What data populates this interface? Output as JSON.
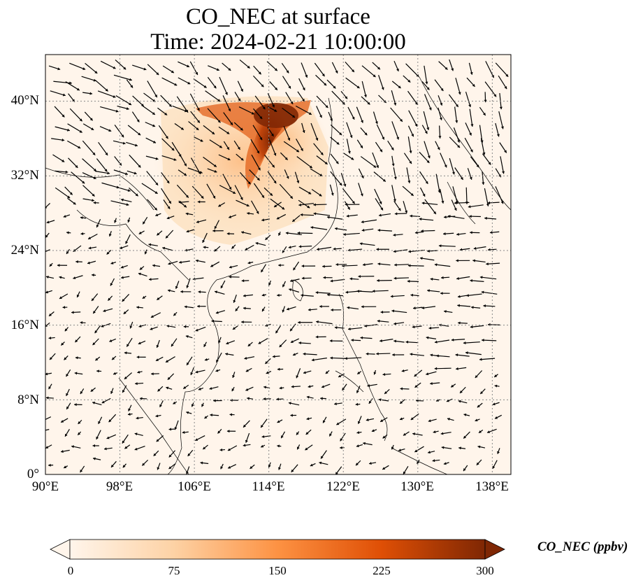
{
  "title": {
    "line1": "CO_NEC at surface",
    "line2": "Time: 2024-02-21 10:00:00"
  },
  "map": {
    "lon_range": [
      90,
      140
    ],
    "lat_range": [
      0,
      45
    ],
    "lat_ticks": [
      {
        "value": 0,
        "label": "0°"
      },
      {
        "value": 8,
        "label": "8°N"
      },
      {
        "value": 16,
        "label": "16°N"
      },
      {
        "value": 24,
        "label": "24°N"
      },
      {
        "value": 32,
        "label": "32°N"
      },
      {
        "value": 40,
        "label": "40°N"
      }
    ],
    "lon_ticks": [
      {
        "value": 90,
        "label": "90°E"
      },
      {
        "value": 98,
        "label": "98°E"
      },
      {
        "value": 106,
        "label": "106°E"
      },
      {
        "value": 114,
        "label": "114°E"
      },
      {
        "value": 122,
        "label": "122°E"
      },
      {
        "value": 130,
        "label": "130°E"
      },
      {
        "value": 138,
        "label": "138°E"
      }
    ],
    "gridlines": "dotted",
    "background_color": "#fff5eb",
    "coastline_color": "#000000",
    "wind_vectors": "black arrows"
  },
  "colorbar": {
    "label": "CO_NEC (ppbv)",
    "min": 0,
    "max": 300,
    "ticks": [
      "0",
      "75",
      "150",
      "225",
      "300"
    ],
    "colormap": [
      "#fff5eb",
      "#fdd2a5",
      "#fd9243",
      "#df4f05",
      "#7f2704"
    ],
    "extend": "both"
  }
}
